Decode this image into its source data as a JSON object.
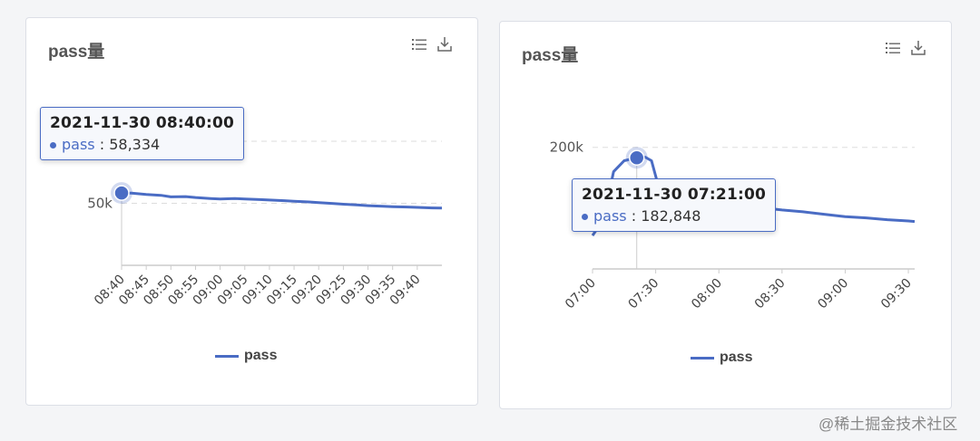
{
  "panels": [
    {
      "title": "pass量",
      "tools": [
        "list-icon",
        "download-icon"
      ],
      "legend": "pass",
      "tooltip": {
        "time": "2021-11-30 08:40:00",
        "series": "pass",
        "value": "58,334"
      },
      "colors": {
        "line": "#4a6cc4"
      }
    },
    {
      "title": "pass量",
      "tools": [
        "list-icon",
        "download-icon"
      ],
      "legend": "pass",
      "tooltip": {
        "time": "2021-11-30 07:21:00",
        "series": "pass",
        "value": "182,848"
      },
      "colors": {
        "line": "#4a6cc4"
      }
    }
  ],
  "chart_data": [
    {
      "type": "line",
      "title": "pass量",
      "x_unit": "minutes",
      "xticks": [
        "08:40",
        "08:45",
        "08:50",
        "08:55",
        "09:00",
        "09:05",
        "09:10",
        "09:15",
        "09:20",
        "09:25",
        "09:30",
        "09:35",
        "09:40"
      ],
      "yticks": [
        {
          "value": 50000,
          "label": "50k"
        },
        {
          "value": 100000,
          "label": ""
        }
      ],
      "ylim": [
        0,
        100000
      ],
      "grid": true,
      "legend_position": "bottom",
      "series": [
        {
          "name": "pass",
          "x": [
            "08:40",
            "08:42",
            "08:45",
            "08:48",
            "08:50",
            "08:53",
            "08:55",
            "08:58",
            "09:00",
            "09:03",
            "09:05",
            "09:08",
            "09:10",
            "09:13",
            "09:15",
            "09:18",
            "09:20",
            "09:23",
            "09:25",
            "09:28",
            "09:30",
            "09:33",
            "09:35",
            "09:38",
            "09:40",
            "09:43",
            "09:45"
          ],
          "values": [
            58334,
            58200,
            57100,
            56400,
            55200,
            55400,
            54700,
            53900,
            53500,
            53800,
            53500,
            53000,
            52600,
            52100,
            51600,
            51100,
            50500,
            49800,
            49300,
            48600,
            48100,
            47600,
            47300,
            47000,
            46700,
            46300,
            46100
          ]
        }
      ]
    },
    {
      "type": "line",
      "title": "pass量",
      "xticks": [
        "07:00",
        "07:30",
        "08:00",
        "08:30",
        "09:00",
        "09:30"
      ],
      "yticks": [
        {
          "value": 200000,
          "label": "200k"
        }
      ],
      "ylim": [
        0,
        280000
      ],
      "grid": true,
      "legend_position": "bottom",
      "series": [
        {
          "name": "pass",
          "x": [
            "07:00",
            "07:05",
            "07:10",
            "07:15",
            "07:21",
            "07:25",
            "07:28",
            "07:31",
            "07:35",
            "07:40",
            "07:45",
            "07:50",
            "07:55",
            "08:00",
            "08:10",
            "08:20",
            "08:30",
            "08:40",
            "08:50",
            "09:00",
            "09:10",
            "09:20",
            "09:30",
            "09:33"
          ],
          "values": [
            55000,
            80000,
            160000,
            178000,
            182848,
            184000,
            178000,
            140000,
            122000,
            117000,
            114000,
            112000,
            110000,
            108000,
            105000,
            101000,
            97000,
            94000,
            90000,
            86000,
            84000,
            81000,
            79000,
            78000
          ]
        }
      ]
    }
  ]
}
